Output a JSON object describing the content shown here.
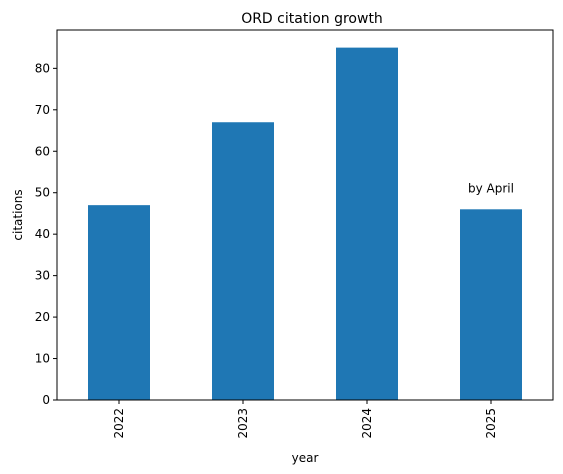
{
  "chart_data": {
    "type": "bar",
    "title": "ORD citation growth",
    "xlabel": "year",
    "ylabel": "citations",
    "categories": [
      "2022",
      "2023",
      "2024",
      "2025"
    ],
    "values": [
      47,
      67,
      85,
      46
    ],
    "ylim": [
      0,
      89.25
    ],
    "yticks": [
      "0",
      "10",
      "20",
      "30",
      "40",
      "50",
      "60",
      "70",
      "80"
    ],
    "annotations": [
      {
        "text": "by April",
        "category": "2025",
        "y": 51
      }
    ],
    "bar_color": "#1f77b4",
    "grid": false,
    "legend": "none"
  }
}
